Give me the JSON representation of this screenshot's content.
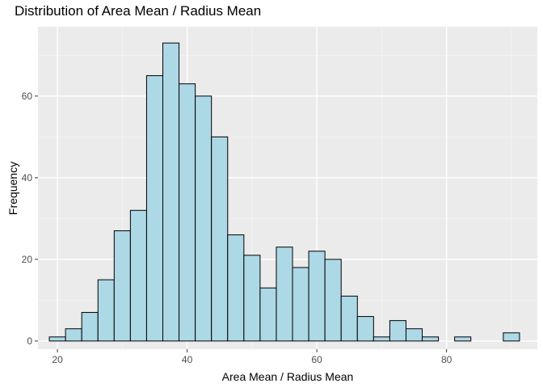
{
  "chart_data": {
    "type": "bar",
    "title": "Distribution of Area Mean / Radius Mean",
    "xlabel": "Area Mean / Radius Mean",
    "ylabel": "Frequency",
    "xlim": [
      17,
      94
    ],
    "ylim": [
      -2,
      77
    ],
    "xticks": [
      20,
      40,
      60,
      80
    ],
    "yticks": [
      0,
      20,
      40,
      60
    ],
    "bin_width": 2.5,
    "bin_start": 18.75,
    "values": [
      1,
      3,
      7,
      15,
      27,
      32,
      65,
      73,
      63,
      60,
      50,
      26,
      21,
      13,
      23,
      18,
      22,
      20,
      11,
      6,
      1,
      5,
      3,
      1,
      0,
      1,
      0,
      0,
      2
    ],
    "grid": true,
    "legend": "none",
    "colors": {
      "panel": "#EBEBEB",
      "grid_major": "#FFFFFF",
      "grid_minor": "#F5F5F5",
      "bar_fill": "#ADD8E6",
      "bar_stroke": "#000000",
      "tick_text": "#4D4D4D"
    }
  }
}
